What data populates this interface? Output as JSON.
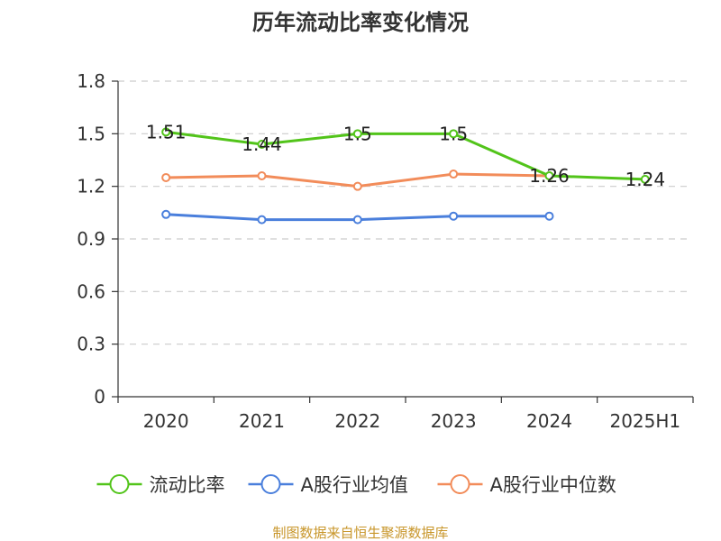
{
  "chart_data": {
    "type": "line",
    "title": "历年流动比率变化情况",
    "categories": [
      "2020",
      "2021",
      "2022",
      "2023",
      "2024",
      "2025H1"
    ],
    "ylim": [
      0,
      1.8
    ],
    "yticks": [
      0,
      0.3,
      0.6,
      0.9,
      1.2,
      1.5,
      1.8
    ],
    "ytick_labels": [
      "0",
      "0.3",
      "0.6",
      "0.9",
      "1.2",
      "1.5",
      "1.8"
    ],
    "grid": true,
    "legend_position": "bottom",
    "series": [
      {
        "name": "流动比率",
        "color": "#52c41a",
        "values": [
          1.51,
          1.44,
          1.5,
          1.5,
          1.26,
          1.24
        ],
        "labels": [
          "1.51",
          "1.44",
          "1.5",
          "1.5",
          "1.26",
          "1.24"
        ]
      },
      {
        "name": "A股行业均值",
        "color": "#4a7fdc",
        "values": [
          1.04,
          1.01,
          1.01,
          1.03,
          1.03,
          null
        ],
        "labels": []
      },
      {
        "name": "A股行业中位数",
        "color": "#f28c5a",
        "values": [
          1.25,
          1.26,
          1.2,
          1.27,
          1.26,
          null
        ],
        "labels": []
      }
    ]
  },
  "source_text": "制图数据来自恒生聚源数据库"
}
